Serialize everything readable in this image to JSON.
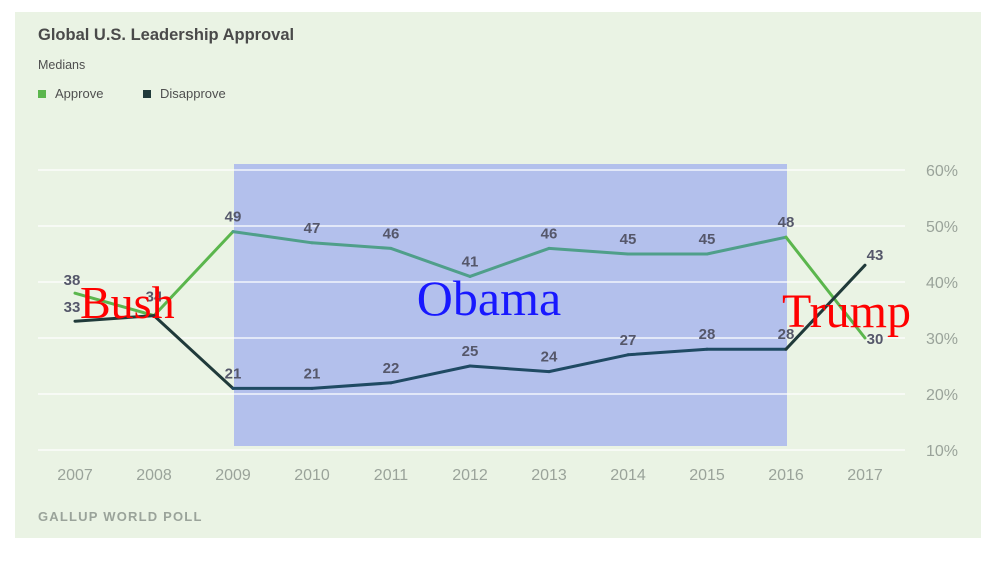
{
  "title": "Global U.S. Leadership Approval",
  "subtitle": "Medians",
  "source": "GALLUP WORLD POLL",
  "colors": {
    "approve": "#5bb64d",
    "approve_in_shade": "#4f9f8a",
    "disapprove": "#203a3a",
    "disapprove_in_shade": "#1f4a63",
    "shade": "#b3c0ec",
    "background": "#eaf3e4",
    "era_bush": "#ff0000",
    "era_obama": "#1818ff",
    "era_trump": "#ff0000"
  },
  "annotations": [
    {
      "label": "Bush",
      "color": "#ff0000"
    },
    {
      "label": "Obama",
      "color": "#1818ff"
    },
    {
      "label": "Trump",
      "color": "#ff0000"
    }
  ],
  "chart_data": {
    "type": "line",
    "x": [
      "2007",
      "2008",
      "2009",
      "2010",
      "2011",
      "2012",
      "2013",
      "2014",
      "2015",
      "2016",
      "2017"
    ],
    "series": [
      {
        "name": "Approve",
        "values": [
          38,
          34,
          49,
          47,
          46,
          41,
          46,
          45,
          45,
          48,
          30
        ]
      },
      {
        "name": "Disapprove",
        "values": [
          33,
          34,
          21,
          21,
          22,
          25,
          24,
          27,
          28,
          28,
          43
        ]
      }
    ],
    "yticks": [
      "10%",
      "20%",
      "30%",
      "40%",
      "50%",
      "60%"
    ],
    "ylim": [
      10,
      60
    ],
    "shaded_range": [
      "2009",
      "2016"
    ],
    "grid": true,
    "legend": "top-left"
  }
}
